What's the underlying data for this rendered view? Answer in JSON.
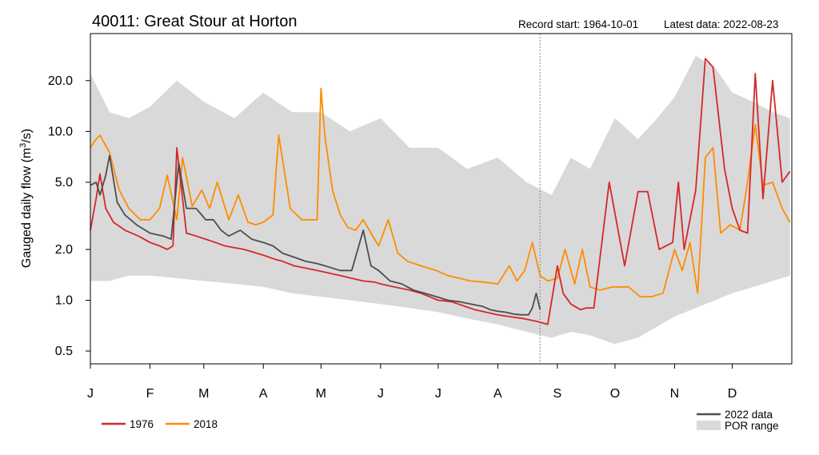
{
  "chart_data": {
    "type": "line",
    "title": "40011: Great Stour at Horton",
    "record_start": "Record start: 1964-10-01",
    "latest_data": "Latest data: 2022-08-23",
    "ylabel_main": "Gauged daily flow (m",
    "ylabel_sup": "3",
    "ylabel_tail": "/s)",
    "y_scale": "log",
    "ylim": [
      0.42,
      38
    ],
    "y_ticks": [
      0.5,
      1.0,
      2.0,
      5.0,
      10.0,
      20.0
    ],
    "y_tick_labels": [
      "0.5",
      "1.0",
      "2.0",
      "5.0",
      "10.0",
      "20.0"
    ],
    "x_domain_days": [
      0,
      365
    ],
    "x_ticks": [
      0,
      31,
      59,
      90,
      120,
      151,
      181,
      212,
      243,
      273,
      304,
      334
    ],
    "x_tick_labels": [
      "J",
      "F",
      "M",
      "A",
      "M",
      "J",
      "J",
      "A",
      "S",
      "O",
      "N",
      "D"
    ],
    "latest_marker_day": 234,
    "legend_placement": "bottom",
    "colors": {
      "y1976": "#d62728",
      "y2018": "#ff8c00",
      "y2022": "#4d4d4d",
      "por": "#d9d9d9",
      "marker": "#888888"
    },
    "por_range": {
      "name": "POR range",
      "x": [
        0,
        10,
        20,
        31,
        45,
        59,
        75,
        90,
        105,
        120,
        135,
        151,
        166,
        181,
        196,
        212,
        227,
        240,
        250,
        260,
        273,
        285,
        295,
        304,
        315,
        325,
        334,
        345,
        355,
        364
      ],
      "upper": [
        22,
        13,
        12,
        14,
        20,
        15,
        12,
        17,
        13,
        13,
        10,
        12,
        8,
        8,
        6,
        7,
        5,
        4.2,
        7,
        6,
        12,
        9,
        12,
        16,
        28,
        24,
        17,
        15,
        13,
        12
      ],
      "lower": [
        1.3,
        1.3,
        1.4,
        1.4,
        1.35,
        1.3,
        1.25,
        1.2,
        1.1,
        1.05,
        1.0,
        0.95,
        0.9,
        0.85,
        0.78,
        0.72,
        0.65,
        0.6,
        0.65,
        0.62,
        0.55,
        0.6,
        0.7,
        0.8,
        0.9,
        1.0,
        1.1,
        1.2,
        1.3,
        1.4
      ]
    },
    "series": [
      {
        "name": "1976",
        "x": [
          0,
          3,
          5,
          8,
          12,
          18,
          25,
          31,
          36,
          40,
          43,
          45,
          50,
          55,
          60,
          65,
          70,
          75,
          80,
          90,
          96,
          100,
          106,
          112,
          118,
          124,
          130,
          136,
          142,
          148,
          151,
          158,
          166,
          172,
          181,
          188,
          195,
          200,
          212,
          218,
          225,
          232,
          238,
          243,
          246,
          250,
          255,
          258,
          262,
          270,
          278,
          285,
          290,
          296,
          303,
          306,
          309,
          315,
          320,
          324,
          330,
          334,
          338,
          342,
          346,
          350,
          355,
          360,
          364
        ],
        "y": [
          2.6,
          4.0,
          5.6,
          3.5,
          2.9,
          2.6,
          2.4,
          2.2,
          2.1,
          2.0,
          2.1,
          8.0,
          2.5,
          2.4,
          2.3,
          2.2,
          2.1,
          2.05,
          2.0,
          1.85,
          1.75,
          1.7,
          1.6,
          1.55,
          1.5,
          1.45,
          1.4,
          1.35,
          1.3,
          1.28,
          1.25,
          1.2,
          1.15,
          1.1,
          1.0,
          0.98,
          0.92,
          0.88,
          0.82,
          0.8,
          0.78,
          0.75,
          0.72,
          1.6,
          1.1,
          0.95,
          0.88,
          0.9,
          0.9,
          5.0,
          1.6,
          4.4,
          4.4,
          2.0,
          2.2,
          5.0,
          2.0,
          4.5,
          27.0,
          24.0,
          6.0,
          3.5,
          2.6,
          2.5,
          22.0,
          4.0,
          20.0,
          5.0,
          5.8
        ]
      },
      {
        "name": "2018",
        "x": [
          0,
          3,
          5,
          10,
          15,
          20,
          26,
          31,
          36,
          40,
          45,
          48,
          53,
          58,
          62,
          66,
          72,
          77,
          82,
          86,
          90,
          95,
          98,
          104,
          110,
          114,
          118,
          120,
          122,
          126,
          130,
          134,
          138,
          142,
          146,
          150,
          155,
          160,
          165,
          172,
          180,
          186,
          192,
          198,
          205,
          212,
          218,
          222,
          226,
          230,
          234,
          238,
          243,
          247,
          252,
          256,
          260,
          265,
          272,
          280,
          286,
          292,
          298,
          304,
          308,
          312,
          316,
          320,
          324,
          328,
          333,
          338,
          342,
          346,
          350,
          355,
          360,
          364
        ],
        "y": [
          8.0,
          9.0,
          9.5,
          7.5,
          4.5,
          3.5,
          3.0,
          3.0,
          3.5,
          5.5,
          3.0,
          7.0,
          3.6,
          4.5,
          3.5,
          5.0,
          3.0,
          4.2,
          2.9,
          2.8,
          2.9,
          3.2,
          9.5,
          3.5,
          3.0,
          3.0,
          3.0,
          18.0,
          9.5,
          4.5,
          3.2,
          2.7,
          2.6,
          3.0,
          2.5,
          2.1,
          3.0,
          1.9,
          1.7,
          1.6,
          1.5,
          1.4,
          1.35,
          1.3,
          1.28,
          1.25,
          1.6,
          1.3,
          1.5,
          2.2,
          1.4,
          1.3,
          1.35,
          2.0,
          1.25,
          2.0,
          1.2,
          1.15,
          1.2,
          1.2,
          1.05,
          1.05,
          1.1,
          2.0,
          1.5,
          2.2,
          1.1,
          7.0,
          8.0,
          2.5,
          2.8,
          2.6,
          5.0,
          11.0,
          4.8,
          5.0,
          3.5,
          2.9
        ]
      },
      {
        "name": "2022 data",
        "x": [
          0,
          3,
          5,
          8,
          10,
          14,
          18,
          24,
          31,
          38,
          42,
          46,
          50,
          55,
          60,
          64,
          68,
          72,
          78,
          84,
          90,
          95,
          100,
          106,
          112,
          118,
          122,
          126,
          130,
          136,
          142,
          146,
          150,
          156,
          162,
          168,
          174,
          180,
          186,
          192,
          198,
          204,
          208,
          212,
          216,
          220,
          224,
          228,
          230,
          232,
          234
        ],
        "y": [
          4.8,
          5.0,
          4.2,
          5.5,
          7.2,
          3.8,
          3.2,
          2.8,
          2.5,
          2.4,
          2.3,
          6.5,
          3.5,
          3.5,
          3.0,
          3.0,
          2.6,
          2.4,
          2.6,
          2.3,
          2.2,
          2.1,
          1.9,
          1.8,
          1.7,
          1.65,
          1.6,
          1.55,
          1.5,
          1.5,
          2.6,
          1.6,
          1.5,
          1.3,
          1.25,
          1.15,
          1.1,
          1.05,
          1.0,
          0.98,
          0.95,
          0.92,
          0.88,
          0.86,
          0.85,
          0.83,
          0.82,
          0.82,
          0.9,
          1.1,
          0.88
        ]
      }
    ]
  }
}
